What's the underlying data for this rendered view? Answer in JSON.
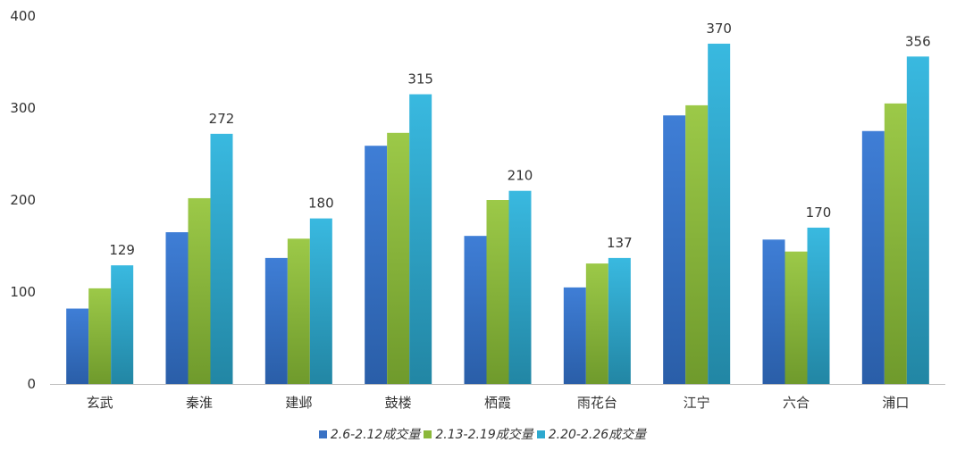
{
  "chart_data": {
    "type": "bar",
    "categories": [
      "玄武",
      "秦淮",
      "建邺",
      "鼓楼",
      "栖霞",
      "雨花台",
      "江宁",
      "六合",
      "浦口"
    ],
    "series": [
      {
        "name": "2.6-2.12成交量",
        "color": "#3a72c4",
        "values": [
          82,
          165,
          137,
          259,
          161,
          105,
          292,
          157,
          275
        ]
      },
      {
        "name": "2.13-2.19成交量",
        "color": "#8bb83a",
        "values": [
          104,
          202,
          158,
          273,
          200,
          131,
          303,
          144,
          305
        ]
      },
      {
        "name": "2.20-2.26成交量",
        "color": "#2ea9cf",
        "values": [
          129,
          272,
          180,
          315,
          210,
          137,
          370,
          170,
          356
        ]
      }
    ],
    "data_labels_series": 2,
    "ylim": [
      0,
      400
    ],
    "yticks": [
      0,
      100,
      200,
      300,
      400
    ],
    "grid": false,
    "legend_position": "bottom"
  }
}
